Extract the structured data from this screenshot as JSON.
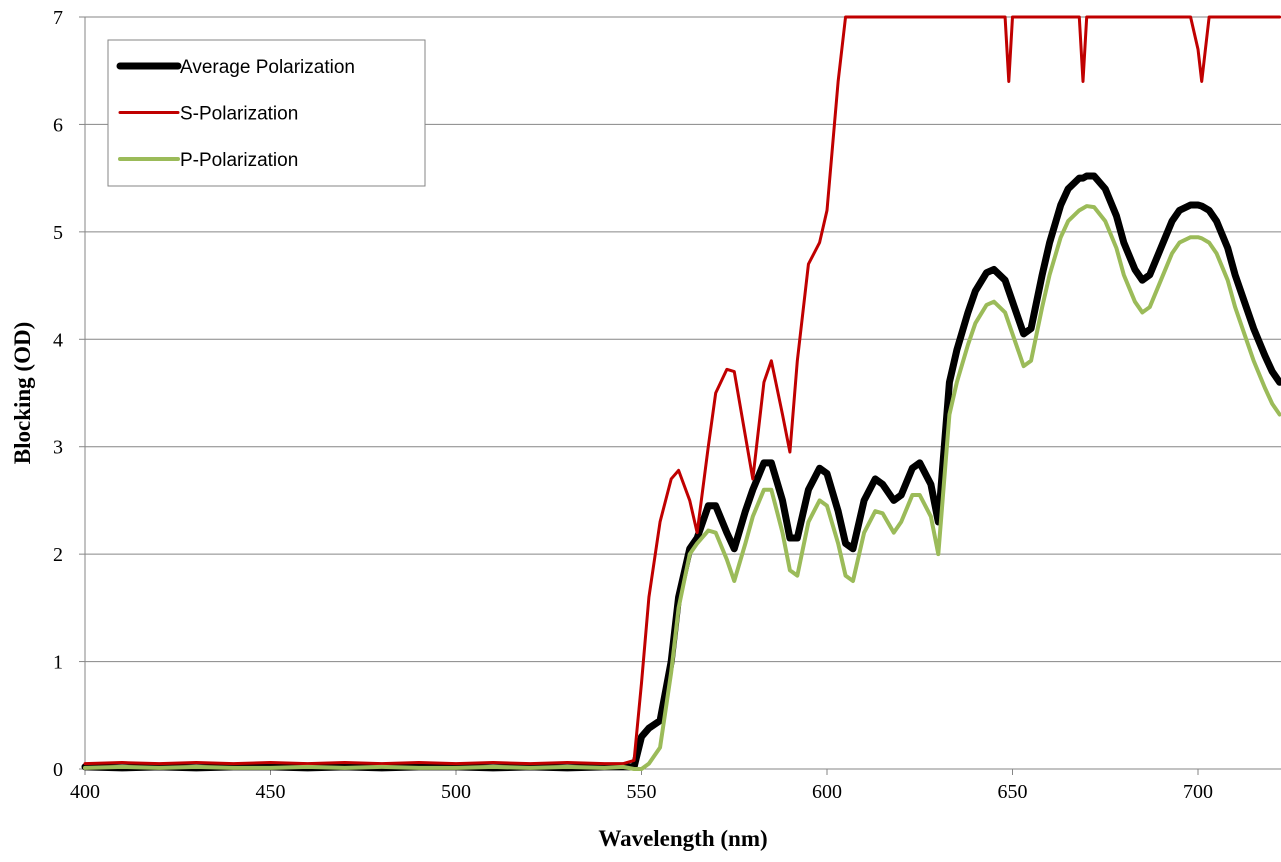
{
  "chart_data": {
    "type": "line",
    "x_label": "Wavelength (nm)",
    "y_label": "Blocking (OD)",
    "x": [
      400,
      410,
      420,
      430,
      440,
      450,
      460,
      470,
      480,
      490,
      500,
      510,
      520,
      530,
      540,
      545,
      548,
      550,
      552,
      555,
      558,
      560,
      563,
      565,
      568,
      570,
      573,
      575,
      578,
      580,
      583,
      585,
      588,
      590,
      592,
      595,
      598,
      600,
      603,
      605,
      607,
      610,
      613,
      615,
      618,
      620,
      623,
      625,
      628,
      630,
      633,
      635,
      638,
      640,
      643,
      645,
      648,
      649,
      650,
      653,
      655,
      658,
      660,
      663,
      665,
      668,
      669,
      670,
      672,
      675,
      678,
      680,
      683,
      685,
      687,
      690,
      693,
      695,
      698,
      700,
      701,
      703,
      705,
      708,
      710,
      713,
      715,
      718,
      720,
      722
    ],
    "series": [
      {
        "name": "Average Polarization",
        "color": "#000000",
        "width": 7,
        "values": [
          0.02,
          0.01,
          0.02,
          0.01,
          0.02,
          0.02,
          0.01,
          0.02,
          0.01,
          0.02,
          0.02,
          0.01,
          0.02,
          0.01,
          0.02,
          0.02,
          0.02,
          0.3,
          0.38,
          0.45,
          1.0,
          1.6,
          2.05,
          2.15,
          2.45,
          2.45,
          2.2,
          2.05,
          2.4,
          2.6,
          2.85,
          2.85,
          2.5,
          2.15,
          2.15,
          2.6,
          2.8,
          2.75,
          2.4,
          2.1,
          2.05,
          2.5,
          2.7,
          2.65,
          2.5,
          2.55,
          2.8,
          2.85,
          2.65,
          2.3,
          3.6,
          3.9,
          4.25,
          4.45,
          4.62,
          4.65,
          4.55,
          4.45,
          4.35,
          4.05,
          4.1,
          4.6,
          4.9,
          5.25,
          5.4,
          5.5,
          5.5,
          5.52,
          5.52,
          5.4,
          5.15,
          4.9,
          4.65,
          4.55,
          4.6,
          4.85,
          5.1,
          5.2,
          5.25,
          5.25,
          5.24,
          5.2,
          5.1,
          4.85,
          4.6,
          4.3,
          4.1,
          3.85,
          3.7,
          3.6
        ]
      },
      {
        "name": "S-Polarization",
        "color": "#c00000",
        "width": 3,
        "values": [
          0.05,
          0.06,
          0.05,
          0.06,
          0.05,
          0.06,
          0.05,
          0.06,
          0.05,
          0.06,
          0.05,
          0.06,
          0.05,
          0.06,
          0.05,
          0.05,
          0.08,
          0.8,
          1.6,
          2.3,
          2.7,
          2.78,
          2.5,
          2.2,
          3.0,
          3.5,
          3.72,
          3.7,
          3.1,
          2.7,
          3.6,
          3.8,
          3.3,
          2.95,
          3.8,
          4.7,
          4.9,
          5.2,
          6.4,
          7,
          7,
          7,
          7,
          7,
          7,
          7,
          7,
          7,
          7,
          7,
          7,
          7,
          7,
          7,
          7,
          7,
          7,
          6.4,
          7,
          7,
          7,
          7,
          7,
          7,
          7,
          7,
          6.4,
          7,
          7,
          7,
          7,
          7,
          7,
          7,
          7,
          7,
          7,
          7,
          7,
          6.7,
          6.4,
          7,
          7,
          7,
          7,
          7,
          7,
          7,
          7,
          7
        ]
      },
      {
        "name": "P-Polarization",
        "color": "#9bbb59",
        "width": 4,
        "values": [
          0.01,
          0.02,
          0.01,
          0.02,
          0.01,
          0.01,
          0.02,
          0.01,
          0.02,
          0.01,
          0.01,
          0.02,
          0.01,
          0.02,
          0.01,
          0.02,
          0.0,
          0.0,
          0.05,
          0.2,
          0.9,
          1.5,
          2.0,
          2.1,
          2.22,
          2.2,
          1.95,
          1.75,
          2.1,
          2.35,
          2.6,
          2.6,
          2.2,
          1.85,
          1.8,
          2.3,
          2.5,
          2.45,
          2.1,
          1.8,
          1.75,
          2.2,
          2.4,
          2.38,
          2.2,
          2.3,
          2.55,
          2.55,
          2.35,
          2.0,
          3.3,
          3.6,
          3.95,
          4.15,
          4.32,
          4.35,
          4.25,
          4.15,
          4.05,
          3.75,
          3.8,
          4.3,
          4.6,
          4.95,
          5.1,
          5.2,
          5.22,
          5.24,
          5.23,
          5.1,
          4.85,
          4.6,
          4.35,
          4.25,
          4.3,
          4.55,
          4.8,
          4.9,
          4.95,
          4.95,
          4.94,
          4.9,
          4.8,
          4.55,
          4.3,
          4.0,
          3.8,
          3.55,
          3.4,
          3.3
        ]
      }
    ],
    "xlim": [
      400,
      722
    ],
    "ylim": [
      0,
      7
    ],
    "xticks": [
      400,
      450,
      500,
      550,
      600,
      650,
      700
    ],
    "yticks": [
      0,
      1,
      2,
      3,
      4,
      5,
      6,
      7
    ],
    "grid": true,
    "legend": "upper left"
  }
}
